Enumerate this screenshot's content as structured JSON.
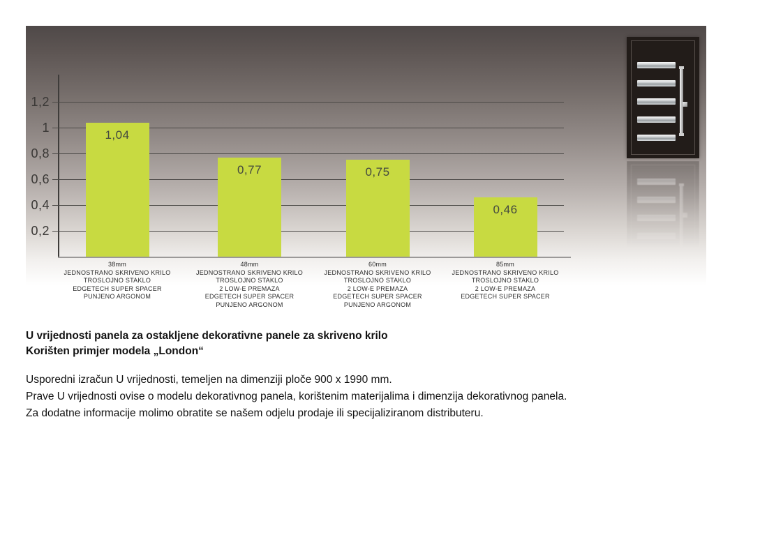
{
  "chart_data": {
    "type": "bar",
    "title": "",
    "xlabel": "",
    "ylabel": "",
    "ylim": [
      0,
      1.4
    ],
    "grid": true,
    "bar_color": "#c8da41",
    "value_text_color": "#44493f",
    "y_ticks": [
      {
        "label": "1,2",
        "value": 1.2
      },
      {
        "label": "1",
        "value": 1.0
      },
      {
        "label": "0,8",
        "value": 0.8
      },
      {
        "label": "0,6",
        "value": 0.6
      },
      {
        "label": "0,4",
        "value": 0.4
      },
      {
        "label": "0,2",
        "value": 0.2
      }
    ],
    "values": [
      1.04,
      0.77,
      0.75,
      0.46
    ],
    "value_labels": [
      "1,04",
      "0,77",
      "0,75",
      "0,46"
    ],
    "categories": [
      {
        "lines": [
          "38mm",
          "JEDNOSTRANO SKRIVENO KRILO",
          "TROSLOJNO STAKLO",
          "EDGETECH SUPER SPACER",
          "PUNJENO ARGONOM"
        ]
      },
      {
        "lines": [
          "48mm",
          "JEDNOSTRANO SKRIVENO KRILO",
          "TROSLOJNO STAKLO",
          "2 LOW-E PREMAZA",
          "EDGETECH SUPER SPACER",
          "PUNJENO ARGONOM"
        ]
      },
      {
        "lines": [
          "60mm",
          "JEDNOSTRANO SKRIVENO KRILO",
          "TROSLOJNO STAKLO",
          "2 LOW-E PREMAZA",
          "EDGETECH SUPER SPACER",
          "PUNJENO ARGONOM"
        ]
      },
      {
        "lines": [
          "85mm",
          "JEDNOSTRANO SKRIVENO KRILO",
          "TROSLOJNO STAKLO",
          "2 LOW-E PREMAZA",
          "EDGETECH SUPER SPACER"
        ]
      }
    ]
  },
  "panel": {
    "gradient_top_color": "#4f4948",
    "gradient_bottom_color": "#ffffff"
  },
  "door_image": {
    "glass_pane_count": 5,
    "body_color": "#221c19",
    "has_reflection": true
  },
  "caption": {
    "title_line1": "U vrijednosti panela za ostakljene dekorativne panele za skriveno krilo",
    "title_line2": "Korišten primjer modela „London“",
    "body_line1": "Usporedni izračun U vrijednosti, temeljen na dimenziji ploče 900 x 1990 mm.",
    "body_line2": "Prave U vrijednosti ovise o modelu dekorativnog panela, korištenim materijalima i dimenzija dekorativnog panela.",
    "body_line3": "Za dodatne informacije molimo obratite se našem odjelu prodaje ili specijaliziranom distributeru."
  }
}
